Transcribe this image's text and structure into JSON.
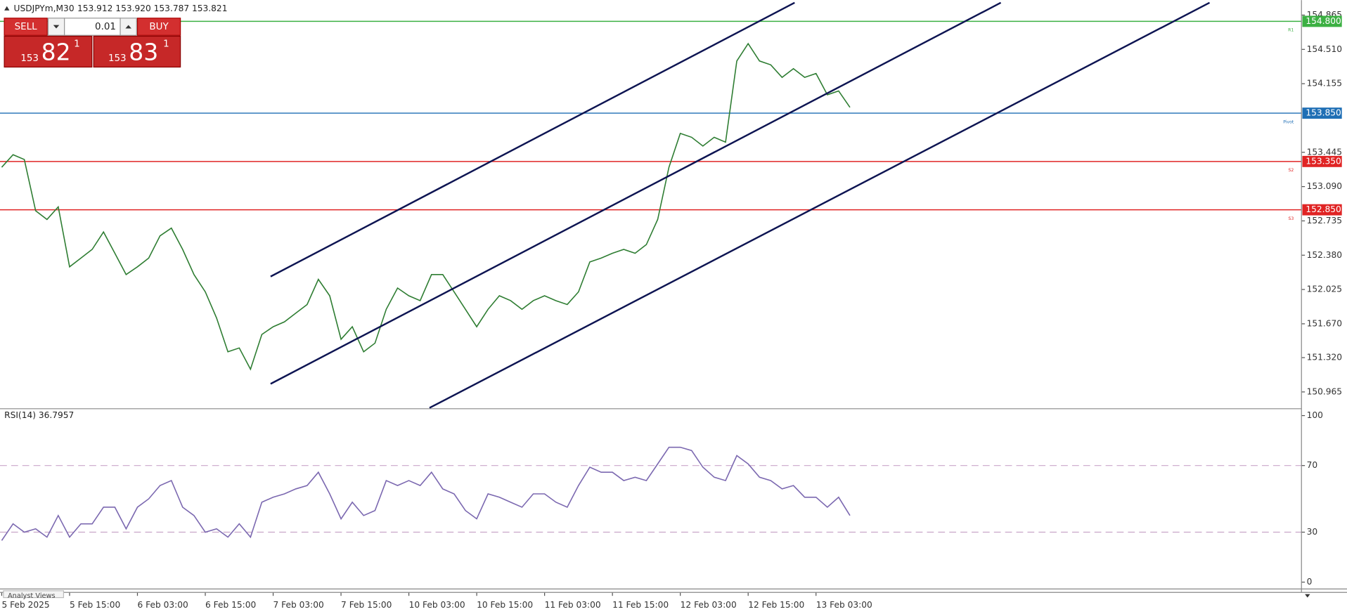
{
  "header": {
    "symbol": "USDJPYm,M30",
    "ohlc": "153.912 153.920 153.787 153.821"
  },
  "trade_panel": {
    "sell": "SELL",
    "buy": "BUY",
    "lot": "0.01",
    "bid": {
      "big": "153",
      "main": "82",
      "small": "1"
    },
    "ask": {
      "big": "153",
      "main": "83",
      "small": "1"
    }
  },
  "footer": {
    "tab": "Analyst Views"
  },
  "chart_data": [
    {
      "type": "line",
      "color": "#2e7d32",
      "xlim": [
        0,
        115
      ],
      "ylim": [
        150.8,
        155.02
      ],
      "xticks": [
        {
          "value": 0,
          "label": "5 Feb 2025"
        },
        {
          "value": 6,
          "label": "5 Feb 15:00"
        },
        {
          "value": 12,
          "label": "6 Feb 03:00"
        },
        {
          "value": 18,
          "label": "6 Feb 15:00"
        },
        {
          "value": 24,
          "label": "7 Feb 03:00"
        },
        {
          "value": 30,
          "label": "7 Feb 15:00"
        },
        {
          "value": 36,
          "label": "10 Feb 03:00"
        },
        {
          "value": 42,
          "label": "10 Feb 15:00"
        },
        {
          "value": 48,
          "label": "11 Feb 03:00"
        },
        {
          "value": 54,
          "label": "11 Feb 15:00"
        },
        {
          "value": 60,
          "label": "12 Feb 03:00"
        },
        {
          "value": 66,
          "label": "12 Feb 15:00"
        },
        {
          "value": 72,
          "label": "13 Feb 03:00"
        }
      ],
      "yticks": [
        {
          "value": 154.865,
          "label": "154.865"
        },
        {
          "value": 154.51,
          "label": "154.510"
        },
        {
          "value": 154.155,
          "label": "154.155"
        },
        {
          "value": 153.445,
          "label": "153.445"
        },
        {
          "value": 153.09,
          "label": "153.090"
        },
        {
          "value": 152.735,
          "label": "152.735"
        },
        {
          "value": 152.38,
          "label": "152.380"
        },
        {
          "value": 152.025,
          "label": "152.025"
        },
        {
          "value": 151.67,
          "label": "151.670"
        },
        {
          "value": 151.32,
          "label": "151.320"
        },
        {
          "value": 150.965,
          "label": "150.965"
        }
      ],
      "levels": [
        {
          "value": 154.8,
          "label": "154.800",
          "name": "R1",
          "color": "#3cb043"
        },
        {
          "value": 153.85,
          "label": "153.850",
          "name": "Pivot",
          "color": "#1f6fb5"
        },
        {
          "value": 153.35,
          "label": "153.350",
          "name": "S2",
          "color": "#e02424"
        },
        {
          "value": 152.85,
          "label": "152.850",
          "name": "S3",
          "color": "#e02424"
        }
      ],
      "x": [
        0,
        1,
        2,
        3,
        4,
        5,
        6,
        7,
        8,
        9,
        10,
        11,
        12,
        13,
        14,
        15,
        16,
        17,
        18,
        19,
        20,
        21,
        22,
        23,
        24,
        25,
        26,
        27,
        28,
        29,
        30,
        31,
        32,
        33,
        34,
        35,
        36,
        37,
        38,
        39,
        40,
        41,
        42,
        43,
        44,
        45,
        46,
        47,
        48,
        49,
        50,
        51,
        52,
        53,
        54,
        55,
        56,
        57,
        58,
        59,
        60,
        61,
        62,
        63,
        64,
        65,
        66,
        67,
        68,
        69,
        70,
        71,
        72,
        73,
        74,
        75
      ],
      "values": [
        153.29,
        153.42,
        153.37,
        152.84,
        152.75,
        152.88,
        152.26,
        152.35,
        152.44,
        152.62,
        152.4,
        152.18,
        152.26,
        152.35,
        152.58,
        152.66,
        152.44,
        152.18,
        152.0,
        151.73,
        151.38,
        151.42,
        151.2,
        151.56,
        151.64,
        151.69,
        151.78,
        151.87,
        152.13,
        151.96,
        151.51,
        151.64,
        151.38,
        151.47,
        151.82,
        152.04,
        151.96,
        151.91,
        152.18,
        152.18,
        152.0,
        151.82,
        151.64,
        151.82,
        151.96,
        151.91,
        151.82,
        151.91,
        151.96,
        151.91,
        151.87,
        152.0,
        152.31,
        152.35,
        152.4,
        152.44,
        152.4,
        152.49,
        152.75,
        153.29,
        153.64,
        153.6,
        153.51,
        153.6,
        153.55,
        154.39,
        154.57,
        154.39,
        154.35,
        154.22,
        154.31,
        154.22,
        154.26,
        154.04,
        154.08,
        153.91
      ]
    },
    {
      "type": "line",
      "title": "RSI(14) 36.7957",
      "color": "#7b68b0",
      "xlim": [
        0,
        115
      ],
      "ylim": [
        0,
        100
      ],
      "yticks": [
        0,
        30,
        70,
        100
      ],
      "levels": [
        30,
        70
      ],
      "x": [
        0,
        1,
        2,
        3,
        4,
        5,
        6,
        7,
        8,
        9,
        10,
        11,
        12,
        13,
        14,
        15,
        16,
        17,
        18,
        19,
        20,
        21,
        22,
        23,
        24,
        25,
        26,
        27,
        28,
        29,
        30,
        31,
        32,
        33,
        34,
        35,
        36,
        37,
        38,
        39,
        40,
        41,
        42,
        43,
        44,
        45,
        46,
        47,
        48,
        49,
        50,
        51,
        52,
        53,
        54,
        55,
        56,
        57,
        58,
        59,
        60,
        61,
        62,
        63,
        64,
        65,
        66,
        67,
        68,
        69,
        70,
        71,
        72,
        73,
        74,
        75
      ],
      "values": [
        25,
        35,
        30,
        32,
        27,
        40,
        27,
        35,
        35,
        45,
        45,
        32,
        45,
        50,
        58,
        61,
        45,
        40,
        30,
        32,
        27,
        35,
        27,
        48,
        51,
        53,
        56,
        58,
        66,
        53,
        38,
        48,
        40,
        43,
        61,
        58,
        61,
        58,
        66,
        56,
        53,
        43,
        38,
        53,
        51,
        48,
        45,
        53,
        53,
        48,
        45,
        58,
        69,
        66,
        66,
        61,
        63,
        61,
        71,
        81,
        81,
        79,
        69,
        63,
        61,
        76,
        71,
        63,
        61,
        56,
        58,
        51,
        51,
        45,
        51,
        40
      ]
    }
  ]
}
